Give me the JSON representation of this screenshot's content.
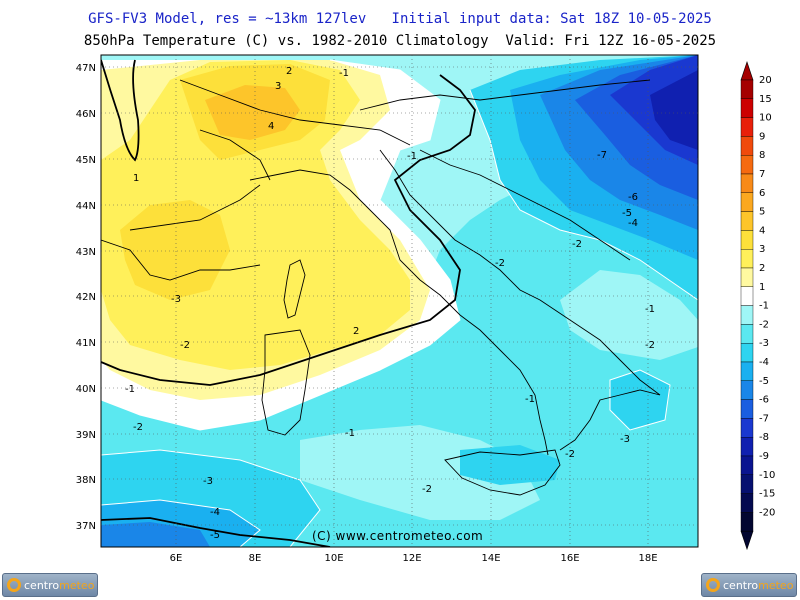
{
  "header": {
    "line1": "GFS-FV3 Model, res = ~13km 127lev   Initial input data: Sat 18Z 10-05-2025",
    "line2": "850hPa Temperature (C) vs. 1982-2010 Climatology  Valid: Fri 12Z 16-05-2025"
  },
  "map": {
    "lat_labels": [
      "47N",
      "46N",
      "45N",
      "44N",
      "43N",
      "42N",
      "41N",
      "40N",
      "39N",
      "38N",
      "37N"
    ],
    "lon_labels": [
      "6E",
      "8E",
      "10E",
      "12E",
      "14E",
      "16E",
      "18E"
    ],
    "contour_labels": [
      "2",
      "-1",
      "3",
      "4",
      "1",
      "-1",
      "-7",
      "-6",
      "-5",
      "-4",
      "-2",
      "-2",
      "-3",
      "-2",
      "-1",
      "-2",
      "2",
      "-1",
      "-1",
      "-2",
      "-1",
      "-3",
      "-2",
      "-3",
      "-2",
      "-4",
      "-5"
    ],
    "copyright": "(C) www.centrometeo.com"
  },
  "legend": {
    "labels": [
      "20",
      "15",
      "10",
      "9",
      "8",
      "7",
      "6",
      "5",
      "4",
      "3",
      "2",
      "1",
      "-1",
      "-2",
      "-3",
      "-4",
      "-5",
      "-6",
      "-7",
      "-8",
      "-9",
      "-10",
      "-15",
      "-20"
    ],
    "colors": [
      "#a50000",
      "#cc0000",
      "#e8200a",
      "#f04a0c",
      "#f56a10",
      "#f88a18",
      "#fba820",
      "#fdc52a",
      "#fde03a",
      "#fff05a",
      "#fff9a0",
      "#ffffff",
      "#9ff6f6",
      "#5be8f0",
      "#2ed4f0",
      "#1ab0f0",
      "#1a86e8",
      "#1a5ee0",
      "#1a38d0",
      "#1020b0",
      "#0a1490",
      "#061070",
      "#040a50",
      "#020630"
    ]
  },
  "logos": {
    "left_brand": "centro",
    "left_brand_accent": "meteo",
    "right_brand": "centro",
    "right_brand_accent": "meteo"
  }
}
